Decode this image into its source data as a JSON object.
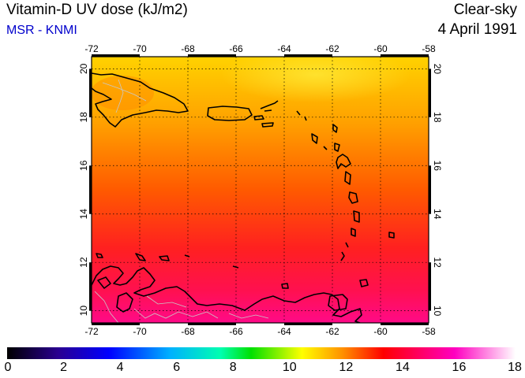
{
  "header": {
    "title": "Vitamin-D UV dose (kJ/m2)",
    "credit": "MSR - KNMI",
    "sky_condition": "Clear-sky",
    "date": "4 April 1991"
  },
  "map": {
    "lon_range": [
      -72,
      -58
    ],
    "lat_range": [
      9.5,
      20.5
    ],
    "lon_ticks": [
      "-72",
      "-70",
      "-68",
      "-66",
      "-64",
      "-62",
      "-60",
      "-58"
    ],
    "lat_ticks": [
      "10",
      "12",
      "14",
      "16",
      "18",
      "20"
    ],
    "gridlines": true,
    "gridline_style": "dotted",
    "field_colors": {
      "north": "#ffd200",
      "upper_mid": "#ff9f00",
      "mid": "#ff5000",
      "lower": "#ff1a30",
      "south": "#ff0a80"
    },
    "regions_shown": [
      "Hispaniola",
      "Puerto Rico",
      "Lesser Antilles",
      "Venezuela coast",
      "Colombia coast"
    ]
  },
  "colorbar": {
    "labels": [
      "0",
      "2",
      "4",
      "6",
      "8",
      "10",
      "12",
      "14",
      "16",
      "18"
    ],
    "range": [
      0,
      18
    ],
    "stops": [
      "#000000",
      "#2a0090",
      "#0000ff",
      "#00b0ff",
      "#00ffb0",
      "#00e000",
      "#ffff00",
      "#ff9000",
      "#ff0000",
      "#ff00c0",
      "#ffffff"
    ]
  }
}
